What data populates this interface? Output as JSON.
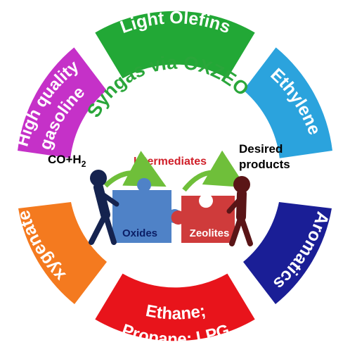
{
  "segments": [
    {
      "label": "Light Olefins",
      "color": "#22a836"
    },
    {
      "label": "Ethylene",
      "color": "#2ba3dd"
    },
    {
      "label": "Aromatics",
      "color": "#1a1e96"
    },
    {
      "label": "Ethane;",
      "label2": "Propane; LPG",
      "color": "#e8141b"
    },
    {
      "label": "Oxygenates",
      "color": "#f47a1f"
    },
    {
      "label": "High quality",
      "label2": "gasoline",
      "color": "#c531c8"
    }
  ],
  "center": {
    "title": "Syngas via OXZEO",
    "title_color": "#2aa63a",
    "reactant_prefix": "CO+H",
    "reactant_sub": "2",
    "intermediates": "Intermediates",
    "intermediates_color": "#d0202a",
    "desired_line1": "Desired",
    "desired_line2": "products",
    "oxides": "Oxides",
    "zeolites": "Zeolites",
    "oxides_color": "#4f82c7",
    "zeolites_color": "#cf3b3b"
  }
}
